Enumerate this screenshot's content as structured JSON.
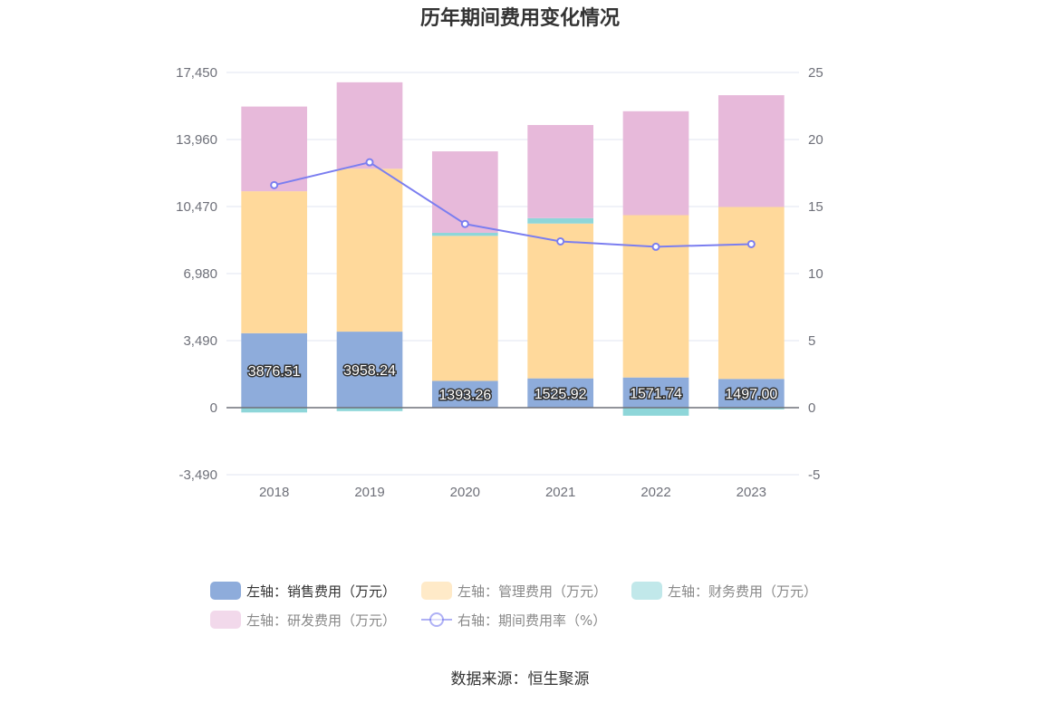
{
  "chart_data": {
    "type": "bar",
    "title": "历年期间费用变化情况",
    "categories": [
      "2018",
      "2019",
      "2020",
      "2021",
      "2022",
      "2023"
    ],
    "left_axis": {
      "ticks": [
        "17,450",
        "13,960",
        "10,470",
        "6,980",
        "3,490",
        "0",
        "-3,490"
      ],
      "ylim": [
        -3490,
        17450
      ]
    },
    "right_axis": {
      "ticks": [
        "25",
        "20",
        "15",
        "10",
        "5",
        "0",
        "-5"
      ],
      "ylim": [
        -5,
        25
      ]
    },
    "series": [
      {
        "name": "左轴：销售费用（万元）",
        "type": "bar",
        "stack": true,
        "color": "#8eacdb",
        "values": [
          3876.51,
          3958.24,
          1393.26,
          1525.92,
          1571.74,
          1497.0
        ],
        "labels": [
          "3876.51",
          "3958.24",
          "1393.26",
          "1525.92",
          "1571.74",
          "1497.00"
        ]
      },
      {
        "name": "左轴：管理费用（万元）",
        "type": "bar",
        "stack": true,
        "color": "#ffd99b",
        "values": [
          7390,
          8480,
          7550,
          8060,
          8450,
          8950
        ]
      },
      {
        "name": "左轴：财务费用（万元）",
        "type": "bar",
        "stack": true,
        "color": "#8ed6d9",
        "values": [
          -250,
          -180,
          160,
          280,
          -420,
          -90
        ]
      },
      {
        "name": "左轴：研发费用（万元）",
        "type": "bar",
        "stack": true,
        "color": "#e7b9da",
        "values": [
          4410,
          4500,
          4240,
          4850,
          5410,
          5820
        ]
      },
      {
        "name": "右轴：期间费用率（%）",
        "type": "line",
        "axis": "right",
        "color": "#7b7ef0",
        "values": [
          16.6,
          18.3,
          13.7,
          12.4,
          12.0,
          12.2
        ]
      }
    ],
    "legend_position": "bottom",
    "grid": true
  },
  "source": "数据来源：恒生聚源"
}
